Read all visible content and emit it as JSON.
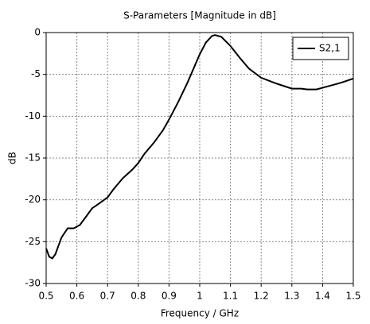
{
  "chart_data": {
    "type": "line",
    "title": "S-Parameters [Magnitude in dB]",
    "xlabel": "Frequency / GHz",
    "ylabel": "dB",
    "x": [
      0.5,
      0.51,
      0.52,
      0.53,
      0.55,
      0.57,
      0.59,
      0.61,
      0.63,
      0.65,
      0.67,
      0.7,
      0.72,
      0.75,
      0.78,
      0.8,
      0.82,
      0.85,
      0.88,
      0.9,
      0.93,
      0.96,
      0.98,
      1.0,
      1.02,
      1.04,
      1.05,
      1.07,
      1.1,
      1.13,
      1.16,
      1.2,
      1.25,
      1.3,
      1.33,
      1.35,
      1.38,
      1.42,
      1.46,
      1.5
    ],
    "series": [
      {
        "name": "S2,1",
        "color": "#000000",
        "values": [
          -25.8,
          -26.8,
          -27.0,
          -26.5,
          -24.5,
          -23.4,
          -23.4,
          -23.0,
          -22.0,
          -21.0,
          -20.5,
          -19.7,
          -18.7,
          -17.4,
          -16.4,
          -15.6,
          -14.5,
          -13.2,
          -11.7,
          -10.4,
          -8.3,
          -6.0,
          -4.3,
          -2.6,
          -1.2,
          -0.4,
          -0.3,
          -0.5,
          -1.6,
          -3.0,
          -4.3,
          -5.4,
          -6.1,
          -6.7,
          -6.7,
          -6.8,
          -6.8,
          -6.4,
          -6.0,
          -5.5
        ]
      }
    ],
    "xlim": [
      0.5,
      1.5
    ],
    "xticks": [
      0.5,
      0.6,
      0.7,
      0.8,
      0.9,
      1,
      1.1,
      1.2,
      1.3,
      1.4,
      1.5
    ],
    "ylim": [
      -30,
      0
    ],
    "yticks": [
      -30,
      -25,
      -20,
      -15,
      -10,
      -5,
      0
    ],
    "grid": true,
    "legend": "upper right"
  }
}
